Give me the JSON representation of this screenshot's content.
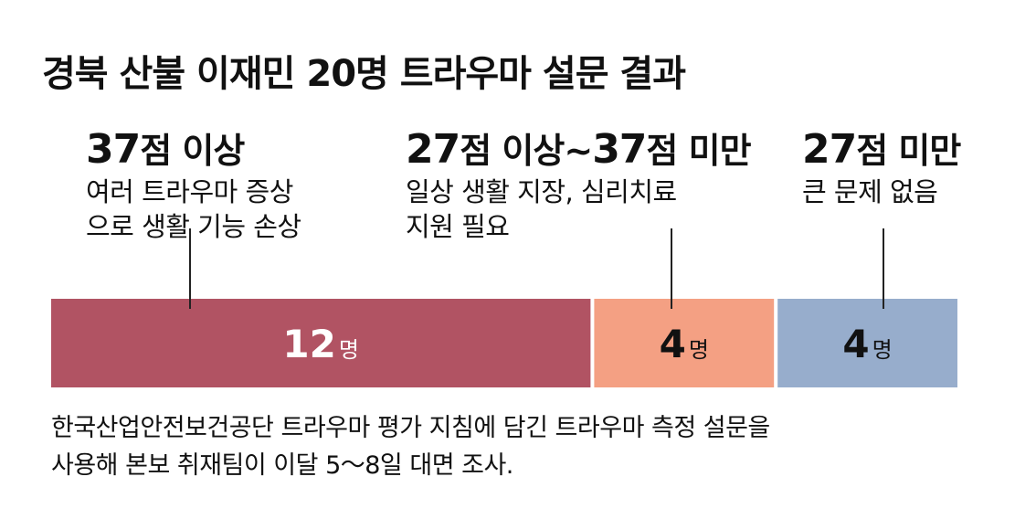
{
  "title": "경북 산불 이재민 20명 트라우마 설문 결과",
  "colors": {
    "severe": "#b15363",
    "moderate": "#f4a083",
    "none": "#97adcc",
    "leader": "#222222"
  },
  "chart_data": {
    "type": "bar",
    "orientation": "horizontal-stacked",
    "unit": "명",
    "total": 20,
    "categories": [
      {
        "num": "37",
        "label_rest": "점 이상",
        "description": [
          "여러 트라우마 증상",
          "으로 생활 기능 손상"
        ],
        "value": 12
      },
      {
        "num": "27",
        "label_rest": "점 이상~",
        "num2": "37",
        "label_rest2": "점 미만",
        "description": [
          "일상 생활 지장, 심리치료",
          "지원 필요"
        ],
        "value": 4
      },
      {
        "num": "27",
        "label_rest": "점 미만",
        "description": [
          "큰 문제 없음"
        ],
        "value": 4
      }
    ]
  },
  "footnote": [
    "한국산업안전보건공단 트라우마 평가 지침에 담긴 트라우마 측정 설문을",
    "사용해 본보 취재팀이 이달 5～8일 대면 조사."
  ]
}
